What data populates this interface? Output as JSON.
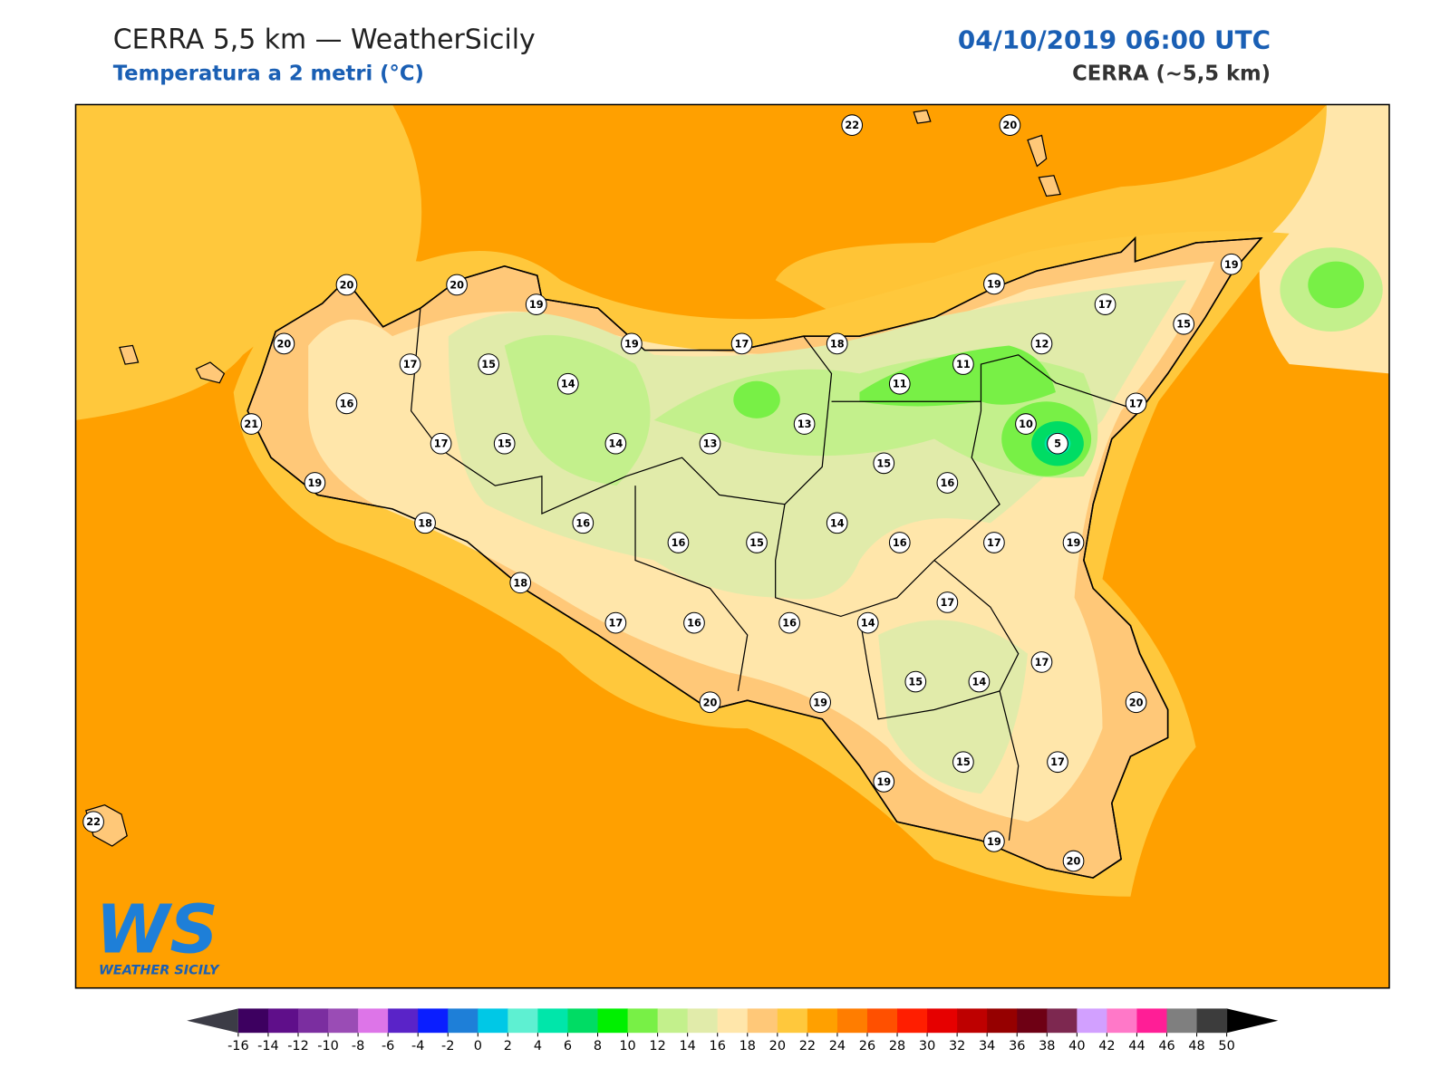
{
  "header": {
    "title": "CERRA 5,5 km — WeatherSicily",
    "subtitle": "Temperatura a 2 metri (°C)",
    "date": "04/10/2019 06:00 UTC",
    "model": "CERRA (~5,5 km)"
  },
  "stations": [
    22,
    20,
    20,
    20,
    19,
    19,
    19,
    17,
    15,
    20,
    17,
    15,
    19,
    17,
    18,
    11,
    12,
    14,
    11,
    17,
    16,
    21,
    17,
    15,
    14,
    13,
    13,
    10,
    5,
    15,
    16,
    19,
    18,
    16,
    16,
    15,
    14,
    16,
    17,
    19,
    17,
    18,
    17,
    16,
    16,
    14,
    17,
    15,
    14,
    20,
    20,
    19,
    15,
    17,
    19,
    19,
    20,
    22
  ],
  "colorbar": {
    "ticks": [
      -16,
      -14,
      -12,
      -10,
      -8,
      -6,
      -4,
      -2,
      0,
      2,
      4,
      6,
      8,
      10,
      12,
      14,
      16,
      18,
      20,
      22,
      24,
      26,
      28,
      30,
      32,
      34,
      36,
      38,
      40,
      42,
      44,
      46,
      48,
      50
    ],
    "colors": [
      "#3d0060",
      "#5f0f8a",
      "#7b2ea0",
      "#9a4cb5",
      "#dd75e8",
      "#5a23c8",
      "#0a1eff",
      "#1e7fd8",
      "#00c8e6",
      "#5ef0d2",
      "#00e6aa",
      "#00dc64",
      "#00f000",
      "#78f046",
      "#c3f08c",
      "#e1ebaa",
      "#ffe6aa",
      "#ffc878",
      "#ffc83c",
      "#ffa000",
      "#ff7d00",
      "#ff5000",
      "#ff1e00",
      "#e60000",
      "#be0000",
      "#960000",
      "#6e0014",
      "#7d2850",
      "#d2a0ff",
      "#ff78c8",
      "#ff1e96",
      "#7f7f7f",
      "#3c3c3c"
    ],
    "under": "#3c3c46",
    "over": "#000000"
  },
  "logo": {
    "mark": "WS",
    "name": "WEATHER SICILY"
  }
}
